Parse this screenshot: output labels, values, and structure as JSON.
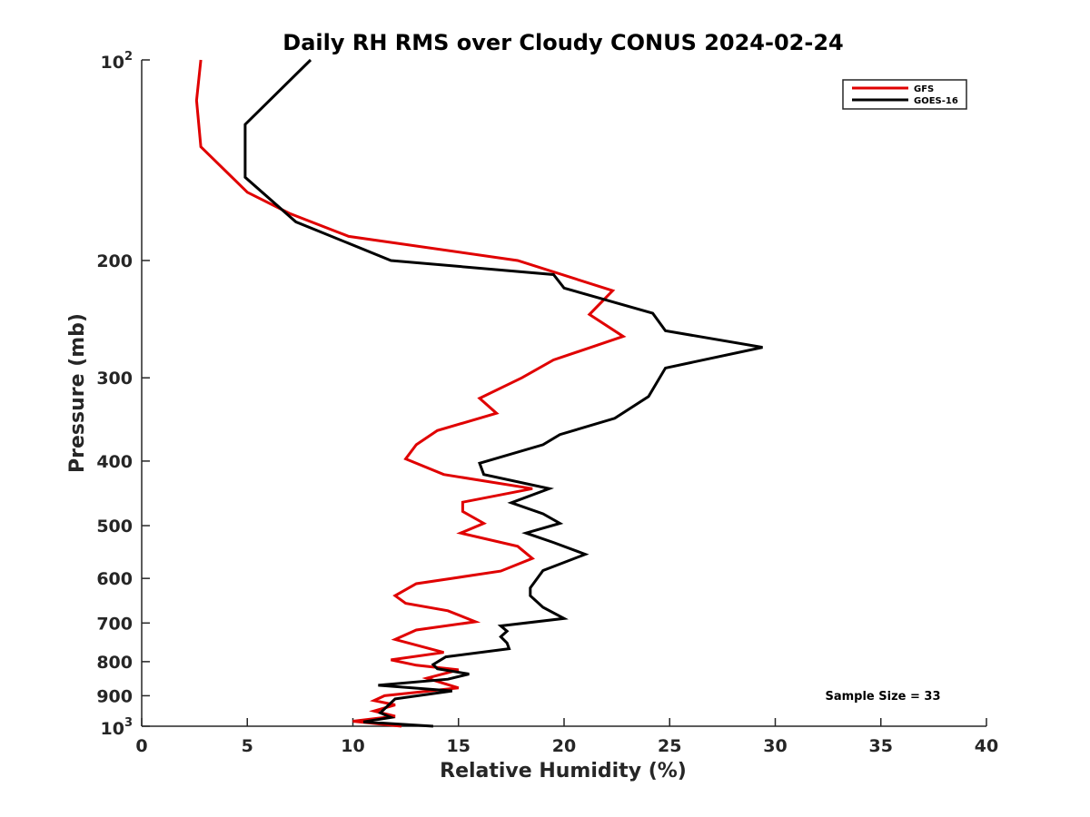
{
  "chart_data": {
    "type": "line",
    "title": "Daily RH RMS over Cloudy CONUS 2024-02-24",
    "xlabel": "Relative Humidity (%)",
    "ylabel": "Pressure (mb)",
    "xlim": [
      0,
      40
    ],
    "ylim": [
      100,
      1000
    ],
    "y_scale": "log",
    "y_reversed": true,
    "grid": false,
    "legend_position": "top-right",
    "x_ticks": [
      "0",
      "5",
      "10",
      "15",
      "20",
      "25",
      "30",
      "35",
      "40"
    ],
    "y_ticks": [
      {
        "value": 100,
        "base": "10",
        "exp": "2"
      },
      {
        "value": 200,
        "label": "200"
      },
      {
        "value": 300,
        "label": "300"
      },
      {
        "value": 400,
        "label": "400"
      },
      {
        "value": 500,
        "label": "500"
      },
      {
        "value": 600,
        "label": "600"
      },
      {
        "value": 700,
        "label": "700"
      },
      {
        "value": 800,
        "label": "800"
      },
      {
        "value": 900,
        "label": "900"
      },
      {
        "value": 1000,
        "base": "10",
        "exp": "3"
      }
    ],
    "annotation": "Sample Size = 33",
    "series": [
      {
        "name": "GFS",
        "color": "#e00000",
        "points": [
          [
            2.8,
            100
          ],
          [
            2.6,
            115
          ],
          [
            2.8,
            135
          ],
          [
            5.0,
            158
          ],
          [
            7.0,
            170
          ],
          [
            9.8,
            184
          ],
          [
            17.8,
            200
          ],
          [
            22.3,
            222
          ],
          [
            21.2,
            241
          ],
          [
            22.8,
            260
          ],
          [
            19.5,
            282
          ],
          [
            18.0,
            300
          ],
          [
            16.0,
            322
          ],
          [
            16.8,
            339
          ],
          [
            14.0,
            360
          ],
          [
            13.0,
            378
          ],
          [
            12.5,
            397
          ],
          [
            14.3,
            419
          ],
          [
            18.5,
            440
          ],
          [
            15.2,
            461
          ],
          [
            15.2,
            476
          ],
          [
            16.2,
            496
          ],
          [
            15.1,
            513
          ],
          [
            17.8,
            537
          ],
          [
            18.5,
            560
          ],
          [
            17.0,
            585
          ],
          [
            13.0,
            611
          ],
          [
            12.0,
            637
          ],
          [
            12.5,
            654
          ],
          [
            14.5,
            671
          ],
          [
            15.8,
            697
          ],
          [
            13.0,
            717
          ],
          [
            12.0,
            741
          ],
          [
            14.3,
            775
          ],
          [
            11.8,
            795
          ],
          [
            13.0,
            810
          ],
          [
            15.0,
            823
          ],
          [
            13.5,
            847
          ],
          [
            15.0,
            876
          ],
          [
            11.5,
            900
          ],
          [
            11.0,
            915
          ],
          [
            12.0,
            929
          ],
          [
            11.0,
            949
          ],
          [
            12.0,
            966
          ],
          [
            10.0,
            983
          ],
          [
            12.3,
            1000
          ]
        ]
      },
      {
        "name": "GOES-16",
        "color": "#000000",
        "points": [
          [
            8.0,
            100
          ],
          [
            4.9,
            125
          ],
          [
            4.9,
            150
          ],
          [
            7.3,
            175
          ],
          [
            11.8,
            200
          ],
          [
            19.5,
            210
          ],
          [
            20.0,
            220
          ],
          [
            24.2,
            240
          ],
          [
            24.8,
            255
          ],
          [
            29.4,
            270
          ],
          [
            24.8,
            290
          ],
          [
            24.0,
            320
          ],
          [
            22.4,
            345
          ],
          [
            19.8,
            365
          ],
          [
            19.0,
            378
          ],
          [
            16.0,
            403
          ],
          [
            16.2,
            419
          ],
          [
            19.3,
            440
          ],
          [
            17.5,
            462
          ],
          [
            19.0,
            480
          ],
          [
            19.8,
            496
          ],
          [
            18.2,
            513
          ],
          [
            19.5,
            530
          ],
          [
            21.0,
            552
          ],
          [
            19.0,
            584
          ],
          [
            18.4,
            620
          ],
          [
            18.4,
            637
          ],
          [
            19.0,
            663
          ],
          [
            20.0,
            689
          ],
          [
            17.0,
            707
          ],
          [
            17.3,
            720
          ],
          [
            17.0,
            734
          ],
          [
            17.3,
            750
          ],
          [
            17.4,
            765
          ],
          [
            14.4,
            787
          ],
          [
            13.8,
            808
          ],
          [
            14.0,
            820
          ],
          [
            15.5,
            835
          ],
          [
            14.5,
            850
          ],
          [
            11.2,
            868
          ],
          [
            14.7,
            885
          ],
          [
            12.0,
            910
          ],
          [
            11.6,
            935
          ],
          [
            11.3,
            955
          ],
          [
            11.8,
            970
          ],
          [
            10.5,
            985
          ],
          [
            13.8,
            1000
          ]
        ]
      }
    ]
  }
}
